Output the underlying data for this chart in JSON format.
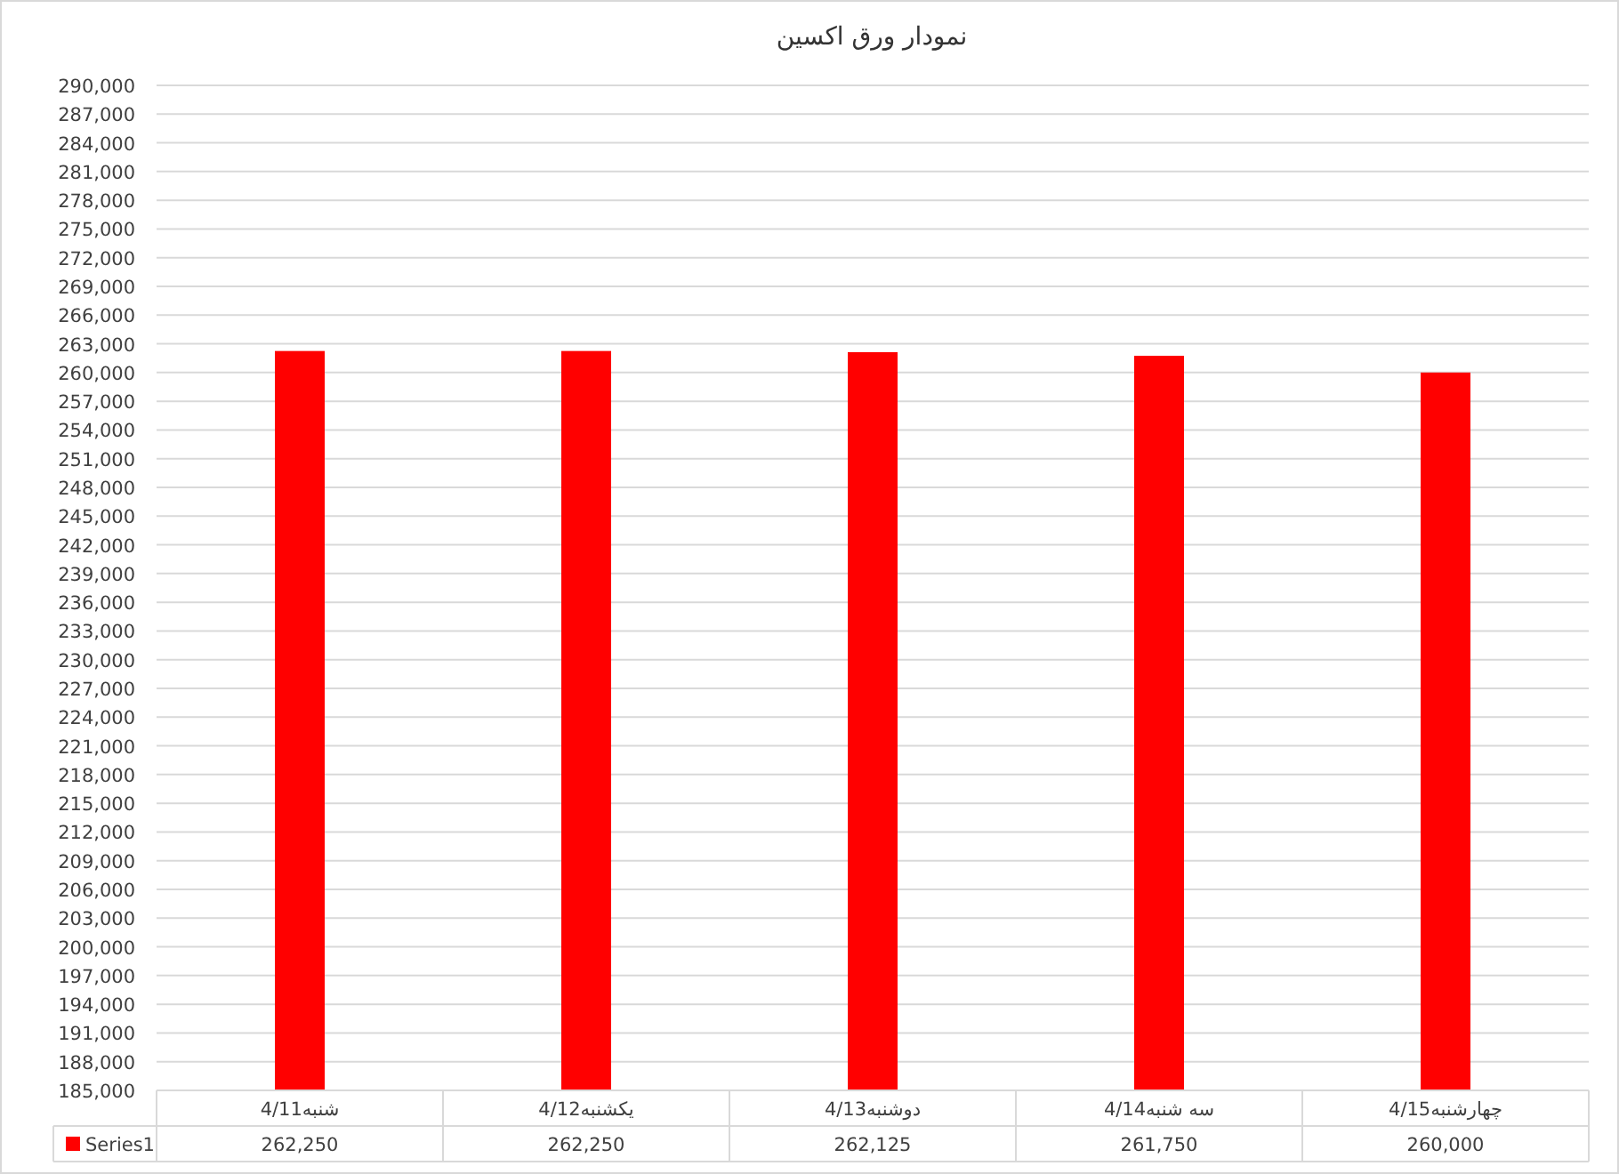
{
  "chart_data": {
    "type": "bar",
    "title": "نمودار ورق اکسین",
    "categories": [
      "شنبه4/11",
      "یکشنبه4/12",
      "دوشنبه4/13",
      "سه شنبه4/14",
      "چهارشنبه4/15"
    ],
    "series": [
      {
        "name": "Series1",
        "color": "#ff0000",
        "values": [
          262250,
          262250,
          262125,
          261750,
          260000
        ],
        "value_labels": [
          "262,250",
          "262,250",
          "262,125",
          "261,750",
          "260,000"
        ]
      }
    ],
    "ylim": [
      185000,
      290000
    ],
    "yticks": [
      {
        "value": 185000,
        "label": "185,000"
      },
      {
        "value": 188000,
        "label": "188,000"
      },
      {
        "value": 191000,
        "label": "191,000"
      },
      {
        "value": 194000,
        "label": "194,000"
      },
      {
        "value": 197000,
        "label": "197,000"
      },
      {
        "value": 200000,
        "label": "200,000"
      },
      {
        "value": 203000,
        "label": "203,000"
      },
      {
        "value": 206000,
        "label": "206,000"
      },
      {
        "value": 209000,
        "label": "209,000"
      },
      {
        "value": 212000,
        "label": "212,000"
      },
      {
        "value": 215000,
        "label": "215,000"
      },
      {
        "value": 218000,
        "label": "218,000"
      },
      {
        "value": 221000,
        "label": "221,000"
      },
      {
        "value": 224000,
        "label": "224,000"
      },
      {
        "value": 227000,
        "label": "227,000"
      },
      {
        "value": 230000,
        "label": "230,000"
      },
      {
        "value": 233000,
        "label": "233,000"
      },
      {
        "value": 236000,
        "label": "236,000"
      },
      {
        "value": 239000,
        "label": "239,000"
      },
      {
        "value": 242000,
        "label": "242,000"
      },
      {
        "value": 245000,
        "label": "245,000"
      },
      {
        "value": 248000,
        "label": "248,000"
      },
      {
        "value": 251000,
        "label": "251,000"
      },
      {
        "value": 254000,
        "label": "254,000"
      },
      {
        "value": 257000,
        "label": "257,000"
      },
      {
        "value": 260000,
        "label": "260,000"
      },
      {
        "value": 263000,
        "label": "263,000"
      },
      {
        "value": 266000,
        "label": "266,000"
      },
      {
        "value": 269000,
        "label": "269,000"
      },
      {
        "value": 272000,
        "label": "272,000"
      },
      {
        "value": 275000,
        "label": "275,000"
      },
      {
        "value": 278000,
        "label": "278,000"
      },
      {
        "value": 281000,
        "label": "281,000"
      },
      {
        "value": 284000,
        "label": "284,000"
      },
      {
        "value": 287000,
        "label": "287,000"
      },
      {
        "value": 290000,
        "label": "290,000"
      }
    ],
    "grid": "y",
    "legend": "bottom"
  }
}
